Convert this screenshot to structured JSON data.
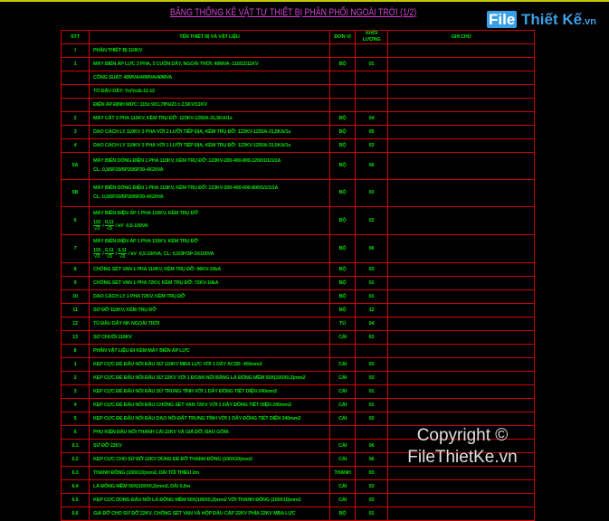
{
  "title": "BẢNG THỐNG KÊ VẬT TƯ THIẾT BỊ PHÂN PHỐI NGOÀI TRỜI (1/2)",
  "logo": {
    "part1": "File",
    "part2": "Thiết Kế",
    "part3": ".vn"
  },
  "watermark": "Copyright © FileThietKe.vn",
  "colors": {
    "grid": "#d00000",
    "text": "#00e000",
    "title": "#d040d0",
    "background": "#000000"
  },
  "headers": {
    "stt": "STT",
    "name": "TÊN THIẾT BỊ VÀ VẬT LIỆU",
    "unit": "ĐƠN VỊ",
    "qty": "KHỐI LƯỢNG",
    "note": "GHI CHÚ"
  },
  "rows": [
    {
      "stt": "I",
      "name": "PHẦN THIẾT BỊ 110KV",
      "unit": "",
      "qty": ""
    },
    {
      "stt": "1",
      "name": "MÁY BIẾN ÁP LỰC 3 PHA, 3 CUỘN DÂY, NGOÀI TRỜI: 40MVA -110/22/11KV",
      "unit": "BỘ",
      "qty": "01"
    },
    {
      "stt": "",
      "name": "CÔNG SUẤT: 40MVA/40MVA/40MVA",
      "unit": "",
      "qty": ""
    },
    {
      "stt": "",
      "name": "TỔ ĐẤU DÂY: Yo/Yo/Δ-11-12",
      "unit": "",
      "qty": ""
    },
    {
      "stt": "",
      "name": "ĐIỆN ÁP ĐỊNH MỨC: 115± 9X1,78%/23 ± 2,5KV/11KV",
      "unit": "",
      "qty": ""
    },
    {
      "stt": "2",
      "name": "MÁY CẮT 3 PHA 110KV, KÈM TRỤ ĐỠ: 123KV-1250A-31,5KA/1s",
      "unit": "BỘ",
      "qty": "04"
    },
    {
      "stt": "3",
      "name": "DAO CÁCH LY 110KV 3 PHA VỚI 2 LƯỠI TIẾP ĐỊA, KÈM TRỤ ĐỠ: 123KV-1250A-31,5KA/1s",
      "unit": "BỘ",
      "qty": "05"
    },
    {
      "stt": "4",
      "name": "DAO CÁCH LY 110KV 3 PHA VỚI 1 LƯỠI TIẾP ĐỊA, KÈM TRỤ ĐỠ: 123KV-1250A-31,5KA/1s",
      "unit": "BỘ",
      "qty": "03"
    },
    {
      "stt": "5A",
      "name": "MÁY BIẾN DÒNG ĐIỆN 1 PHA 110KV, KÈM TRỤ ĐỠ: 123KV-200-400-800-1200/1/1/1/1A",
      "name2": "CL: 0,5/5P20/5P20/5P20-4X20VA",
      "unit": "BỘ",
      "qty": "06"
    },
    {
      "stt": "5B",
      "name": "MÁY BIẾN DÒNG ĐIỆN 1 PHA 110KV, KÈM TRỤ ĐỠ: 123KV-200-400-600-800/1/1/1/1A",
      "name2": "CL: 0,5/5P20/5P20/5P20-4X20VA",
      "unit": "BỘ",
      "qty": "03"
    },
    {
      "stt": "6",
      "name": "MÁY BIẾN ĐIỆN ÁP 1 PHA 110KV, KÈM TRỤ ĐỠ",
      "fractions": [
        [
          "115",
          "√3"
        ],
        [
          "0,11",
          "√3"
        ]
      ],
      "name2": "kV -0,5-100VA",
      "unit": "BỘ",
      "qty": "02"
    },
    {
      "stt": "7",
      "name": "MÁY BIẾN ĐIỆN ÁP 1 PHA 110KV, KÈM TRỤ ĐỠ",
      "fractions": [
        [
          "115",
          "√3"
        ],
        [
          "0,11",
          "√3"
        ],
        [
          "0,11",
          "√3"
        ]
      ],
      "name2": "kV -0,5-100VA; CL: 0,5/3P/3P-3X100VA",
      "unit": "BỘ",
      "qty": "06"
    },
    {
      "stt": "8",
      "name": "CHỐNG SÉT VAN 1 PHA 110KV, KÈM TRỤ ĐỠ: 96KV-10kA",
      "unit": "BỘ",
      "qty": "03"
    },
    {
      "stt": "9",
      "name": "CHỐNG SÉT VAN 1 PHA 72KV, KÈM TRỤ ĐỠ: 72KV-10kA",
      "unit": "BỘ",
      "qty": "01"
    },
    {
      "stt": "10",
      "name": "DAO CÁCH LY 1 PHA 72KV, KÈM TRỤ ĐỠ",
      "unit": "BỘ",
      "qty": "01"
    },
    {
      "stt": "11",
      "name": "SỨ ĐỠ 110KV, KÈM TRỤ ĐỠ",
      "unit": "BỘ",
      "qty": "12"
    },
    {
      "stt": "12",
      "name": "TỦ ĐẤU DÂY NK NGOÀI TRỜI",
      "unit": "TỦ",
      "qty": "04"
    },
    {
      "stt": "13",
      "name": "SỨ CHUỖI 110KV",
      "unit": "CÁI",
      "qty": "63"
    },
    {
      "stt": "II",
      "name": "PHẦN VẬT LIỆU ĐI KÈM MÁY BIẾN ÁP LỰC",
      "unit": "",
      "qty": ""
    },
    {
      "stt": "1",
      "name": "KẸP CỰC ĐỂ ĐẤU NỐI ĐẦU SỨ 110KV MBA LỰC VỚI 1 DÂY ACSR -400mm2",
      "unit": "CÁI",
      "qty": "03"
    },
    {
      "stt": "2",
      "name": "KẸP CỰC ĐỂ ĐẤU NỐI ĐẦU SỨ 22KV VỚI 1 ĐOẠN NỐI BẰNG LÁ ĐỒNG MỀM 50X(100X0,2)mm2",
      "unit": "CÁI",
      "qty": "03"
    },
    {
      "stt": "3",
      "name": "KẸP CỰC ĐỂ ĐẤU NỐI ĐẦU SỨ TRUNG TÍNH VỚI 1 DÂY ĐỒNG TIẾT DIỆN 240mm2",
      "unit": "CÁI",
      "qty": "01"
    },
    {
      "stt": "4",
      "name": "KẸP CỰC ĐỂ ĐẤU NỐI ĐẦU CHỐNG SÉT VAN 72KV VỚI 1 DÂY ĐỒNG TIẾT DIỆN 240mm2",
      "unit": "CÁI",
      "qty": "01"
    },
    {
      "stt": "5",
      "name": "KẸP CỰC ĐỂ ĐẤU NỐI ĐẦU DAO NỐI ĐẤT TRUNG TÍNH VỚI 1 DÂY ĐỒNG TIẾT DIỆN 240mm2",
      "unit": "CÁI",
      "qty": "02"
    },
    {
      "stt": "6",
      "name": "PHỤ KIỆN ĐẤU NỐI THANH CÁI 22KV VÀ GIÁ ĐỠ, BAO GỒM:",
      "unit": "",
      "qty": ""
    },
    {
      "stt": "6.1",
      "name": "SỨ ĐỠ 22KV",
      "unit": "CÁI",
      "qty": "06"
    },
    {
      "stt": "6.2",
      "name": "KẸP CỰC CHO SỨ ĐỠ 22KV DÙNG ĐỂ ĐỠ THANH ĐỒNG (100X10)mm2",
      "unit": "CÁI",
      "qty": "06"
    },
    {
      "stt": "6.3",
      "name": "THANH ĐỒNG (100X10)mm2, DÀI TỐI THIỂU 2m",
      "unit": "THANH",
      "qty": "03"
    },
    {
      "stt": "6.4",
      "name": "LÁ ĐỒNG MỀM 50X(100X0,2)mm2, DÀI 0,5m",
      "unit": "CÁI",
      "qty": "03"
    },
    {
      "stt": "6.5",
      "name": "KẸP CỰC DÙNG ĐẤU NỐI LÁ ĐỒNG MỀM 50X(100X0,2)mm2 VỚI THANH ĐỒNG (100X10)mm2",
      "unit": "CÁI",
      "qty": "03"
    },
    {
      "stt": "6.6",
      "name": "GIÁ ĐỠ CHO SỨ ĐỠ 22KV, CHỐNG SÉT VAN VÀ HỘP ĐẦU CÁP 22KV PHÍA 22KV MBA LỰC",
      "unit": "BỘ",
      "qty": "01"
    }
  ]
}
